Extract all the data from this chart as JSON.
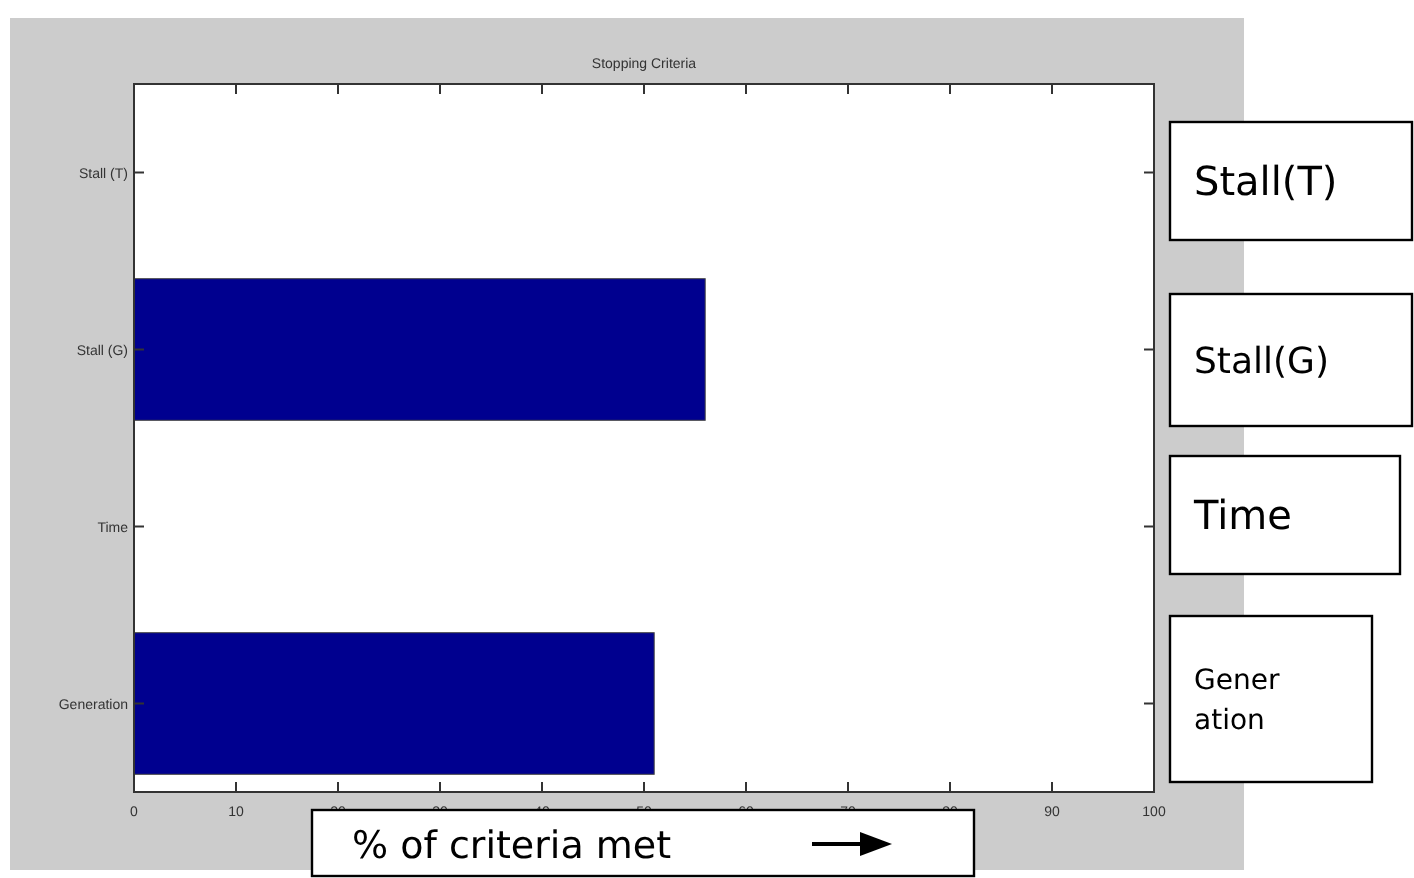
{
  "chart_data": {
    "type": "bar",
    "orientation": "horizontal",
    "title": "Stopping Criteria",
    "xlabel": "% of criteria met",
    "categories": [
      "Stall (T)",
      "Stall (G)",
      "Time",
      "Generation"
    ],
    "values": [
      0,
      56,
      0,
      51
    ],
    "color": "#00008f",
    "xlim": [
      0,
      100
    ],
    "xticks": [
      0,
      10,
      20,
      30,
      40,
      50,
      60,
      70,
      80,
      90,
      100
    ],
    "grid": false,
    "annotations": [
      "Stall(T)",
      "Stall(G)",
      "Time",
      "Gener\nation"
    ]
  }
}
